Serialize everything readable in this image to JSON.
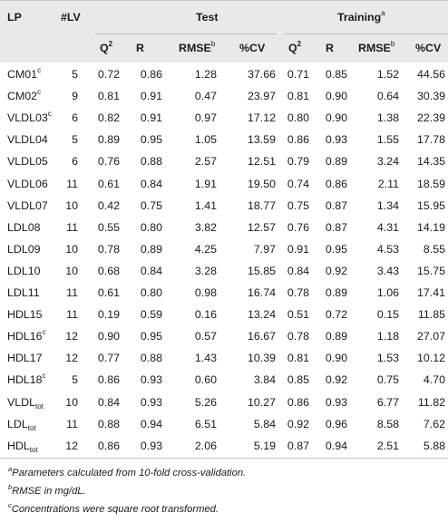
{
  "header": {
    "lp": "LP",
    "lv": "#LV",
    "test": "Test",
    "training": "Training",
    "training_sup": "a",
    "q2": "Q",
    "q2_sup": "2",
    "r": "R",
    "rmse": "RMSE",
    "rmse_sup": "b",
    "cv": "%CV"
  },
  "rows": [
    {
      "lp": "CM01",
      "sup": "c",
      "sub": "",
      "lv": "5",
      "q2_t": "0.72",
      "r_t": "0.86",
      "rmse_t": "1.28",
      "cv_t": "37.66",
      "q2_tr": "0.71",
      "r_tr": "0.85",
      "rmse_tr": "1.52",
      "cv_tr": "44.56"
    },
    {
      "lp": "CM02",
      "sup": "c",
      "sub": "",
      "lv": "9",
      "q2_t": "0.81",
      "r_t": "0.91",
      "rmse_t": "0.47",
      "cv_t": "23.97",
      "q2_tr": "0.81",
      "r_tr": "0.90",
      "rmse_tr": "0.64",
      "cv_tr": "30.39"
    },
    {
      "lp": "VLDL03",
      "sup": "c",
      "sub": "",
      "lv": "6",
      "q2_t": "0.82",
      "r_t": "0.91",
      "rmse_t": "0.97",
      "cv_t": "17.12",
      "q2_tr": "0.80",
      "r_tr": "0.90",
      "rmse_tr": "1.38",
      "cv_tr": "22.39"
    },
    {
      "lp": "VLDL04",
      "sup": "",
      "sub": "",
      "lv": "5",
      "q2_t": "0.89",
      "r_t": "0.95",
      "rmse_t": "1.05",
      "cv_t": "13.59",
      "q2_tr": "0.86",
      "r_tr": "0.93",
      "rmse_tr": "1.55",
      "cv_tr": "17.78"
    },
    {
      "lp": "VLDL05",
      "sup": "",
      "sub": "",
      "lv": "6",
      "q2_t": "0.76",
      "r_t": "0.88",
      "rmse_t": "2.57",
      "cv_t": "12.51",
      "q2_tr": "0.79",
      "r_tr": "0.89",
      "rmse_tr": "3.24",
      "cv_tr": "14.35"
    },
    {
      "lp": "VLDL06",
      "sup": "",
      "sub": "",
      "lv": "11",
      "q2_t": "0.61",
      "r_t": "0.84",
      "rmse_t": "1.91",
      "cv_t": "19.50",
      "q2_tr": "0.74",
      "r_tr": "0.86",
      "rmse_tr": "2.11",
      "cv_tr": "18.59"
    },
    {
      "lp": "VLDL07",
      "sup": "",
      "sub": "",
      "lv": "10",
      "q2_t": "0.42",
      "r_t": "0.75",
      "rmse_t": "1.41",
      "cv_t": "18.77",
      "q2_tr": "0.75",
      "r_tr": "0.87",
      "rmse_tr": "1.34",
      "cv_tr": "15.95"
    },
    {
      "lp": "LDL08",
      "sup": "",
      "sub": "",
      "lv": "11",
      "q2_t": "0.55",
      "r_t": "0.80",
      "rmse_t": "3.82",
      "cv_t": "12.57",
      "q2_tr": "0.76",
      "r_tr": "0.87",
      "rmse_tr": "4.31",
      "cv_tr": "14.19"
    },
    {
      "lp": "LDL09",
      "sup": "",
      "sub": "",
      "lv": "10",
      "q2_t": "0.78",
      "r_t": "0.89",
      "rmse_t": "4.25",
      "cv_t": "7.97",
      "q2_tr": "0.91",
      "r_tr": "0.95",
      "rmse_tr": "4.53",
      "cv_tr": "8.55"
    },
    {
      "lp": "LDL10",
      "sup": "",
      "sub": "",
      "lv": "10",
      "q2_t": "0.68",
      "r_t": "0.84",
      "rmse_t": "3.28",
      "cv_t": "15.85",
      "q2_tr": "0.84",
      "r_tr": "0.92",
      "rmse_tr": "3.43",
      "cv_tr": "15.75"
    },
    {
      "lp": "LDL11",
      "sup": "",
      "sub": "",
      "lv": "11",
      "q2_t": "0.61",
      "r_t": "0.80",
      "rmse_t": "0.98",
      "cv_t": "16.74",
      "q2_tr": "0.78",
      "r_tr": "0.89",
      "rmse_tr": "1.06",
      "cv_tr": "17.41"
    },
    {
      "lp": "HDL15",
      "sup": "",
      "sub": "",
      "lv": "11",
      "q2_t": "0.19",
      "r_t": "0.59",
      "rmse_t": "0.16",
      "cv_t": "13.24",
      "q2_tr": "0.51",
      "r_tr": "0.72",
      "rmse_tr": "0.15",
      "cv_tr": "11.85"
    },
    {
      "lp": "HDL16",
      "sup": "c",
      "sub": "",
      "lv": "12",
      "q2_t": "0.90",
      "r_t": "0.95",
      "rmse_t": "0.57",
      "cv_t": "16.67",
      "q2_tr": "0.78",
      "r_tr": "0.89",
      "rmse_tr": "1.18",
      "cv_tr": "27.07"
    },
    {
      "lp": "HDL17",
      "sup": "",
      "sub": "",
      "lv": "12",
      "q2_t": "0.77",
      "r_t": "0.88",
      "rmse_t": "1.43",
      "cv_t": "10.39",
      "q2_tr": "0.81",
      "r_tr": "0.90",
      "rmse_tr": "1.53",
      "cv_tr": "10.12"
    },
    {
      "lp": "HDL18",
      "sup": "c",
      "sub": "",
      "lv": "5",
      "q2_t": "0.86",
      "r_t": "0.93",
      "rmse_t": "0.60",
      "cv_t": "3.84",
      "q2_tr": "0.85",
      "r_tr": "0.92",
      "rmse_tr": "0.75",
      "cv_tr": "4.70"
    },
    {
      "lp": "VLDL",
      "sup": "",
      "sub": "tot",
      "lv": "10",
      "q2_t": "0.84",
      "r_t": "0.93",
      "rmse_t": "5.26",
      "cv_t": "10.27",
      "q2_tr": "0.86",
      "r_tr": "0.93",
      "rmse_tr": "6.77",
      "cv_tr": "11.82"
    },
    {
      "lp": "LDL",
      "sup": "",
      "sub": "tot",
      "lv": "11",
      "q2_t": "0.88",
      "r_t": "0.94",
      "rmse_t": "6.51",
      "cv_t": "5.84",
      "q2_tr": "0.92",
      "r_tr": "0.96",
      "rmse_tr": "8.58",
      "cv_tr": "7.62"
    },
    {
      "lp": "HDL",
      "sup": "",
      "sub": "tot",
      "lv": "12",
      "q2_t": "0.86",
      "r_t": "0.93",
      "rmse_t": "2.06",
      "cv_t": "5.19",
      "q2_tr": "0.87",
      "r_tr": "0.94",
      "rmse_tr": "2.51",
      "cv_tr": "5.88"
    }
  ],
  "footnotes": [
    {
      "mark": "a",
      "text": "Parameters calculated from 10-fold cross-validation."
    },
    {
      "mark": "b",
      "text": "RMSE in mg/dL."
    },
    {
      "mark": "c",
      "text": "Concentrations were square root transformed."
    }
  ]
}
